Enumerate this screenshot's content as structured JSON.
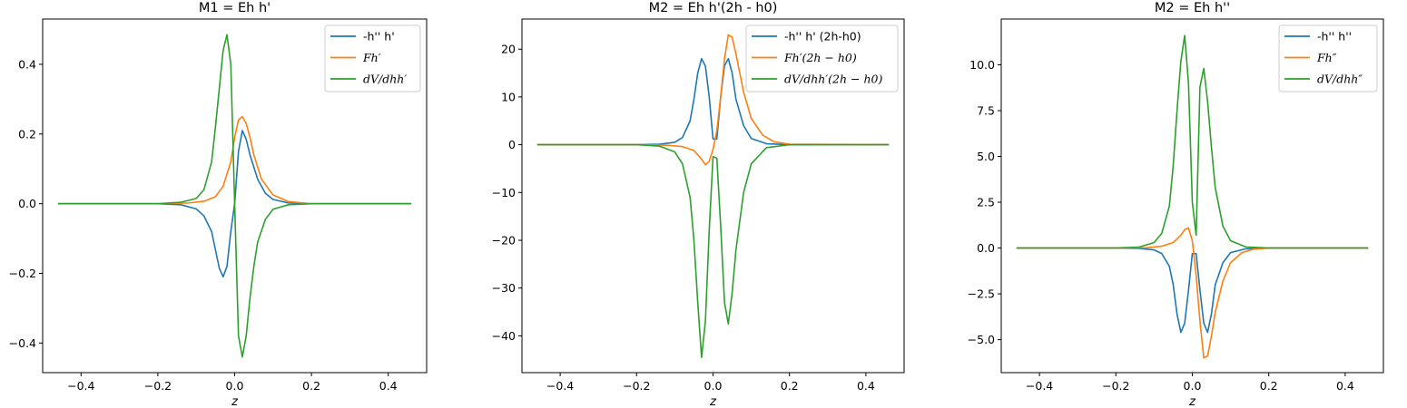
{
  "figure": {
    "colors": {
      "blue": "#1f77b4",
      "orange": "#ff7f0e",
      "green": "#2ca02c"
    }
  },
  "chart_data": [
    {
      "type": "line",
      "title": "M1 = Eh h'",
      "xlabel": "z",
      "ylabel": "",
      "xlim": [
        -0.5,
        0.5
      ],
      "ylim": [
        -0.485,
        0.53
      ],
      "xticks": [
        -0.4,
        -0.2,
        0.0,
        0.2,
        0.4
      ],
      "xtick_labels": [
        "−0.4",
        "−0.2",
        "0.0",
        "0.2",
        "0.4"
      ],
      "yticks": [
        -0.4,
        -0.2,
        0.0,
        0.2,
        0.4
      ],
      "ytick_labels": [
        "−0.4",
        "−0.2",
        "0.0",
        "0.2",
        "0.4"
      ],
      "legend": "top-right",
      "grid": false,
      "series": [
        {
          "name": "-h'' h'",
          "math": false,
          "color": "#1f77b4",
          "x": [
            -0.46,
            -0.2,
            -0.14,
            -0.1,
            -0.08,
            -0.06,
            -0.04,
            -0.03,
            -0.02,
            -0.01,
            0.0,
            0.01,
            0.02,
            0.03,
            0.04,
            0.06,
            0.08,
            0.1,
            0.14,
            0.2,
            0.46
          ],
          "y": [
            0.0,
            0.0,
            -0.003,
            -0.015,
            -0.035,
            -0.08,
            -0.185,
            -0.21,
            -0.18,
            -0.08,
            0.0,
            0.15,
            0.21,
            0.185,
            0.14,
            0.07,
            0.03,
            0.012,
            0.002,
            0.0,
            0.0
          ]
        },
        {
          "name": "Fh′",
          "math": true,
          "color": "#ff7f0e",
          "x": [
            -0.46,
            -0.2,
            -0.12,
            -0.08,
            -0.05,
            -0.03,
            -0.01,
            0.0,
            0.01,
            0.02,
            0.03,
            0.04,
            0.05,
            0.07,
            0.1,
            0.14,
            0.2,
            0.46
          ],
          "y": [
            0.0,
            0.0,
            0.002,
            0.007,
            0.02,
            0.05,
            0.12,
            0.19,
            0.24,
            0.25,
            0.23,
            0.19,
            0.14,
            0.07,
            0.025,
            0.006,
            0.0,
            0.0
          ]
        },
        {
          "name": "dV/dhh′",
          "math": true,
          "color": "#2ca02c",
          "x": [
            -0.46,
            -0.2,
            -0.14,
            -0.1,
            -0.08,
            -0.06,
            -0.05,
            -0.04,
            -0.03,
            -0.02,
            -0.01,
            0.0,
            0.01,
            0.02,
            0.03,
            0.04,
            0.05,
            0.06,
            0.08,
            0.1,
            0.14,
            0.2,
            0.46
          ],
          "y": [
            0.0,
            0.0,
            0.004,
            0.015,
            0.04,
            0.12,
            0.22,
            0.33,
            0.44,
            0.485,
            0.4,
            0.0,
            -0.38,
            -0.44,
            -0.38,
            -0.27,
            -0.18,
            -0.11,
            -0.045,
            -0.016,
            -0.003,
            0.0,
            0.0
          ]
        }
      ]
    },
    {
      "type": "line",
      "title": "M2 = Eh h'(2h - h0)",
      "xlabel": "z",
      "ylabel": "",
      "xlim": [
        -0.5,
        0.5
      ],
      "ylim": [
        -47.7,
        26.3
      ],
      "xticks": [
        -0.4,
        -0.2,
        0.0,
        0.2,
        0.4
      ],
      "xtick_labels": [
        "−0.4",
        "−0.2",
        "0.0",
        "0.2",
        "0.4"
      ],
      "yticks": [
        -40,
        -30,
        -20,
        -10,
        0,
        10,
        20
      ],
      "ytick_labels": [
        "−40",
        "−30",
        "−20",
        "−10",
        "0",
        "10",
        "20"
      ],
      "legend": "top-right",
      "grid": false,
      "series": [
        {
          "name": "-h'' h' (2h-h0)",
          "math": false,
          "color": "#1f77b4",
          "x": [
            -0.46,
            -0.2,
            -0.14,
            -0.1,
            -0.08,
            -0.06,
            -0.05,
            -0.04,
            -0.03,
            -0.02,
            -0.01,
            0.0,
            0.01,
            0.02,
            0.03,
            0.04,
            0.05,
            0.06,
            0.08,
            0.1,
            0.14,
            0.2,
            0.46
          ],
          "y": [
            0.0,
            0.0,
            0.1,
            0.5,
            1.5,
            5.0,
            9.5,
            15.0,
            18.0,
            16.5,
            10.0,
            1.2,
            1.2,
            10.0,
            16.5,
            18.0,
            15.0,
            9.5,
            4.0,
            1.3,
            0.2,
            0.0,
            0.0
          ]
        },
        {
          "name": "Fh′(2h − h0)",
          "math": true,
          "color": "#ff7f0e",
          "x": [
            -0.46,
            -0.2,
            -0.12,
            -0.08,
            -0.05,
            -0.03,
            -0.02,
            -0.01,
            0.0,
            0.01,
            0.02,
            0.03,
            0.04,
            0.05,
            0.06,
            0.08,
            0.1,
            0.13,
            0.16,
            0.2,
            0.46
          ],
          "y": [
            0.0,
            0.0,
            -0.1,
            -0.4,
            -1.2,
            -3.0,
            -4.2,
            -3.5,
            -1.0,
            3.0,
            10.0,
            18.0,
            23.0,
            22.5,
            19.0,
            11.0,
            5.5,
            2.0,
            0.6,
            0.1,
            0.0
          ]
        },
        {
          "name": "dV/dhh′(2h − h0)",
          "math": true,
          "color": "#2ca02c",
          "x": [
            -0.46,
            -0.2,
            -0.14,
            -0.1,
            -0.08,
            -0.06,
            -0.05,
            -0.04,
            -0.03,
            -0.02,
            -0.01,
            0.0,
            0.01,
            0.02,
            0.03,
            0.04,
            0.05,
            0.06,
            0.08,
            0.1,
            0.14,
            0.2,
            0.46
          ],
          "y": [
            0.0,
            0.0,
            -0.3,
            -1.5,
            -4.0,
            -11.0,
            -20.0,
            -33.0,
            -44.5,
            -37.0,
            -18.0,
            -2.5,
            -2.8,
            -17.0,
            -33.0,
            -37.5,
            -31.0,
            -22.0,
            -10.0,
            -4.0,
            -0.6,
            0.0,
            0.0
          ]
        }
      ]
    },
    {
      "type": "line",
      "title": "M2 = Eh h''",
      "xlabel": "z",
      "ylabel": "",
      "xlim": [
        -0.5,
        0.5
      ],
      "ylim": [
        -6.8,
        12.5
      ],
      "xticks": [
        -0.4,
        -0.2,
        0.0,
        0.2,
        0.4
      ],
      "xtick_labels": [
        "−0.4",
        "−0.2",
        "0.0",
        "0.2",
        "0.4"
      ],
      "yticks": [
        -5.0,
        -2.5,
        0.0,
        2.5,
        5.0,
        7.5,
        10.0
      ],
      "ytick_labels": [
        "−5.0",
        "−2.5",
        "0.0",
        "2.5",
        "5.0",
        "7.5",
        "10.0"
      ],
      "legend": "top-right",
      "grid": false,
      "series": [
        {
          "name": "-h'' h''",
          "math": false,
          "color": "#1f77b4",
          "x": [
            -0.46,
            -0.2,
            -0.14,
            -0.1,
            -0.08,
            -0.06,
            -0.05,
            -0.04,
            -0.03,
            -0.02,
            -0.01,
            0.0,
            0.01,
            0.02,
            0.03,
            0.04,
            0.05,
            0.06,
            0.08,
            0.1,
            0.14,
            0.2,
            0.46
          ],
          "y": [
            0.0,
            0.0,
            -0.02,
            -0.1,
            -0.3,
            -1.0,
            -2.0,
            -3.6,
            -4.6,
            -4.1,
            -2.3,
            -0.3,
            -0.3,
            -2.3,
            -4.1,
            -4.6,
            -3.6,
            -2.0,
            -0.8,
            -0.25,
            -0.04,
            0.0,
            0.0
          ]
        },
        {
          "name": "Fh″",
          "math": true,
          "color": "#ff7f0e",
          "x": [
            -0.46,
            -0.2,
            -0.12,
            -0.08,
            -0.05,
            -0.03,
            -0.02,
            -0.01,
            0.0,
            0.01,
            0.02,
            0.03,
            0.04,
            0.05,
            0.06,
            0.08,
            0.1,
            0.13,
            0.16,
            0.2,
            0.46
          ],
          "y": [
            0.0,
            0.0,
            0.02,
            0.1,
            0.3,
            0.7,
            1.0,
            1.1,
            0.4,
            -1.5,
            -4.0,
            -6.0,
            -5.9,
            -4.8,
            -3.5,
            -1.8,
            -0.8,
            -0.25,
            -0.06,
            0.0,
            0.0
          ]
        },
        {
          "name": "dV/dhh″",
          "math": true,
          "color": "#2ca02c",
          "x": [
            -0.46,
            -0.2,
            -0.14,
            -0.1,
            -0.08,
            -0.06,
            -0.05,
            -0.04,
            -0.03,
            -0.02,
            -0.01,
            0.0,
            0.01,
            0.02,
            0.03,
            0.04,
            0.05,
            0.06,
            0.08,
            0.1,
            0.14,
            0.2,
            0.46
          ],
          "y": [
            0.0,
            0.0,
            0.05,
            0.3,
            0.8,
            2.3,
            4.5,
            7.5,
            10.2,
            11.6,
            9.0,
            2.5,
            0.7,
            8.8,
            9.8,
            8.0,
            5.5,
            3.3,
            1.2,
            0.4,
            0.06,
            0.0,
            0.0
          ]
        }
      ]
    }
  ]
}
